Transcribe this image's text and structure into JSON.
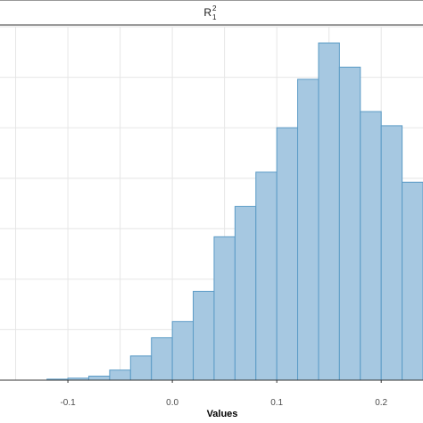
{
  "chart_data": {
    "type": "bar",
    "title": "R",
    "title_superscript": "2",
    "title_subscript": "1",
    "xlabel": "Values",
    "ylabel": "",
    "bin_width": 0.02,
    "bin_start": -0.14,
    "counts": [
      0,
      0.5,
      1,
      2,
      5,
      12,
      21,
      29,
      44,
      71,
      86,
      103,
      125,
      149,
      167,
      155,
      133,
      126,
      98,
      66,
      49,
      36,
      19,
      11,
      6,
      3,
      1
    ],
    "xlim": [
      -0.165,
      0.24
    ],
    "ylim": [
      0,
      175
    ],
    "x_ticks": [
      -0.1,
      0.0,
      0.1,
      0.2
    ],
    "x_tick_labels": [
      "-0.1",
      "0.0",
      "0.1",
      "0.2"
    ],
    "grid": true,
    "colors": {
      "bar_fill": "#a6c8e1",
      "bar_outline": "#5b9bc6",
      "grid": "#e6e6e6"
    }
  }
}
